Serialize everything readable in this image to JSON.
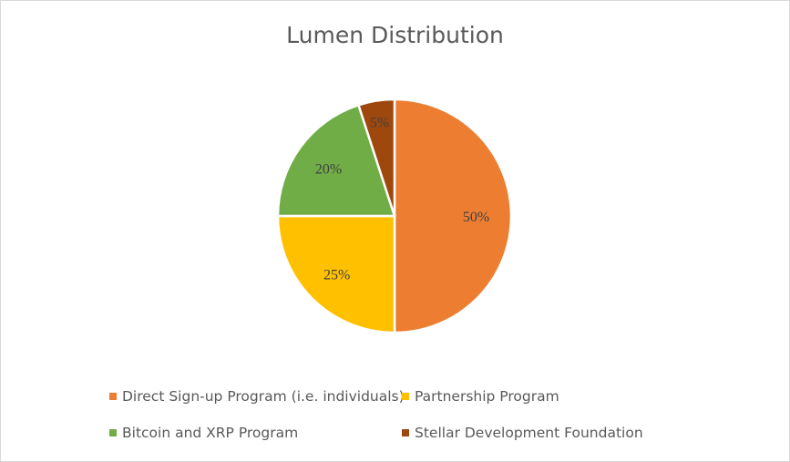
{
  "chart_data": {
    "type": "pie",
    "title": "Lumen Distribution",
    "categories": [
      "Direct Sign-up Program (i.e. individuals)",
      "Partnership Program",
      "Bitcoin and XRP Program",
      "Stellar Development Foundation"
    ],
    "values": [
      50,
      25,
      20,
      5
    ],
    "data_labels": [
      "50%",
      "25%",
      "20%",
      "5%"
    ],
    "colors": [
      "#ED7D31",
      "#FFC000",
      "#70AD47",
      "#9E480E"
    ],
    "legend_position": "bottom"
  }
}
